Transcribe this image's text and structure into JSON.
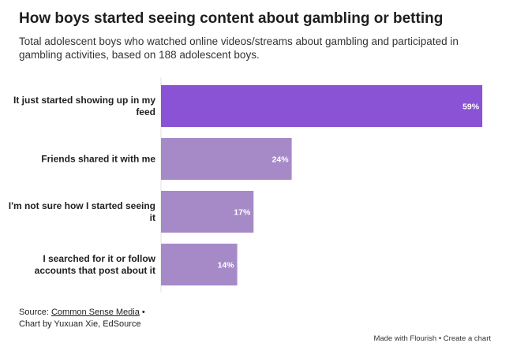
{
  "header": {
    "title": "How boys started seeing content about gambling or betting",
    "subtitle": "Total adolescent boys who watched online videos/streams about gambling and participated in gambling activities, based on 188 adolescent boys."
  },
  "chart_data": {
    "type": "bar",
    "orientation": "horizontal",
    "categories": [
      [
        "It just started showing up in my",
        "feed"
      ],
      [
        "Friends shared it with me"
      ],
      [
        "I'm not sure how I started seeing",
        "it"
      ],
      [
        "I searched for it or follow",
        "accounts that post about it"
      ]
    ],
    "values": [
      59,
      24,
      17,
      14
    ],
    "value_labels": [
      "59%",
      "24%",
      "17%",
      "14%"
    ],
    "colors": [
      "#8a52d4",
      "#a68ac8",
      "#a68ac8",
      "#a68ac8"
    ],
    "xlim": [
      0,
      60
    ],
    "grid": false
  },
  "footer": {
    "source_prefix": "Source: ",
    "source_link": "Common Sense Media",
    "source_suffix": " •",
    "credit": "Chart by Yuxuan Xie, EdSource"
  },
  "flourish": {
    "made_with": "Made with Flourish",
    "separator": " • ",
    "create": "Create a chart"
  }
}
